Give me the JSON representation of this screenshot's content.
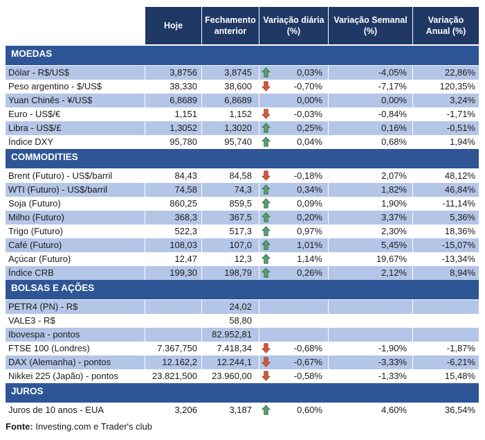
{
  "header": {
    "columns": [
      "Hoje",
      "Fechamento anterior",
      "Variação diária (%)",
      "Variação Semanal (%)",
      "Variação Anual (%)"
    ]
  },
  "chart_data": {
    "type": "table",
    "columns": [
      "",
      "Hoje",
      "Fechamento anterior",
      "Variação diária (%)",
      "Variação Semanal (%)",
      "Variação Anual (%)"
    ],
    "sections": [
      {
        "title": "MOEDAS",
        "rows": [
          {
            "label": "Dólar - R$/US$",
            "hoje": "3,8756",
            "fechamento": "3,8745",
            "arrow": "up",
            "diaria": "0,03%",
            "semanal": "-4,05%",
            "anual": "22,86%"
          },
          {
            "label": "Peso argentino - $/US$",
            "hoje": "38,330",
            "fechamento": "38,600",
            "arrow": "down",
            "diaria": "-0,70%",
            "semanal": "-7,17%",
            "anual": "120,35%"
          },
          {
            "label": "Yuan Chinês - ¥/US$",
            "hoje": "6,8689",
            "fechamento": "6,8689",
            "arrow": "none",
            "diaria": "0,00%",
            "semanal": "0,00%",
            "anual": "3,24%"
          },
          {
            "label": "Euro - US$/€",
            "hoje": "1,151",
            "fechamento": "1,152",
            "arrow": "down",
            "diaria": "-0,03%",
            "semanal": "-0,84%",
            "anual": "-1,71%"
          },
          {
            "label": "Libra - US$/£",
            "hoje": "1,3052",
            "fechamento": "1,3020",
            "arrow": "up",
            "diaria": "0,25%",
            "semanal": "0,16%",
            "anual": "-0,51%"
          },
          {
            "label": "Índice DXY",
            "hoje": "95,780",
            "fechamento": "95,740",
            "arrow": "up",
            "diaria": "0,04%",
            "semanal": "0,68%",
            "anual": "1,94%"
          }
        ]
      },
      {
        "title": "COMMODITIES",
        "rows": [
          {
            "label": "Brent (Futuro) - US$/barril",
            "hoje": "84,43",
            "fechamento": "84,58",
            "arrow": "down",
            "diaria": "-0,18%",
            "semanal": "2,07%",
            "anual": "48,12%"
          },
          {
            "label": "WTI (Futuro) - US$/barril",
            "hoje": "74,58",
            "fechamento": "74,3",
            "arrow": "up",
            "diaria": "0,34%",
            "semanal": "1,82%",
            "anual": "46,84%"
          },
          {
            "label": "Soja (Futuro)",
            "hoje": "860,25",
            "fechamento": "859,5",
            "arrow": "up",
            "diaria": "0,09%",
            "semanal": "1,90%",
            "anual": "-11,14%"
          },
          {
            "label": "Milho (Futuro)",
            "hoje": "368,3",
            "fechamento": "367,5",
            "arrow": "up",
            "diaria": "0,20%",
            "semanal": "3,37%",
            "anual": "5,36%"
          },
          {
            "label": "Trigo (Futuro)",
            "hoje": "522,3",
            "fechamento": "517,3",
            "arrow": "up",
            "diaria": "0,97%",
            "semanal": "2,30%",
            "anual": "18,36%"
          },
          {
            "label": "Café (Futuro)",
            "hoje": "108,03",
            "fechamento": "107,0",
            "arrow": "up",
            "diaria": "1,01%",
            "semanal": "5,45%",
            "anual": "-15,07%"
          },
          {
            "label": "Açúcar (Futuro)",
            "hoje": "12,47",
            "fechamento": "12,3",
            "arrow": "up",
            "diaria": "1,14%",
            "semanal": "19,67%",
            "anual": "-13,34%"
          },
          {
            "label": "Índice CRB",
            "hoje": "199,30",
            "fechamento": "198,79",
            "arrow": "up",
            "diaria": "0,26%",
            "semanal": "2,12%",
            "anual": "8,94%"
          }
        ]
      },
      {
        "title": "BOLSAS E AÇÕES",
        "rows": [
          {
            "label": "PETR4 (PN) - R$",
            "hoje": "",
            "fechamento": "24,02",
            "arrow": "none",
            "diaria": "",
            "semanal": "",
            "anual": ""
          },
          {
            "label": "VALE3 - R$",
            "hoje": "",
            "fechamento": "58,80",
            "arrow": "none",
            "diaria": "",
            "semanal": "",
            "anual": ""
          },
          {
            "label": "Ibovespa - pontos",
            "hoje": "",
            "fechamento": "82.952,81",
            "arrow": "none",
            "diaria": "",
            "semanal": "",
            "anual": ""
          },
          {
            "label": "FTSE 100 (Londres)",
            "hoje": "7.367,750",
            "fechamento": "7.418,34",
            "arrow": "down",
            "diaria": "-0,68%",
            "semanal": "-1,90%",
            "anual": "-1,87%"
          },
          {
            "label": "DAX (Alemanha) - pontos",
            "hoje": "12.162,2",
            "fechamento": "12.244,1",
            "arrow": "down",
            "diaria": "-0,67%",
            "semanal": "-3,33%",
            "anual": "-6,21%"
          },
          {
            "label": "Nikkei 225 (Japão) - pontos",
            "hoje": "23.821,500",
            "fechamento": "23.960,00",
            "arrow": "down",
            "diaria": "-0,58%",
            "semanal": "-1,33%",
            "anual": "15,48%"
          }
        ]
      },
      {
        "title": "JUROS",
        "rows": [
          {
            "label": "Juros de 10 anos - EUA",
            "hoje": "3,206",
            "fechamento": "3,187",
            "arrow": "up",
            "diaria": "0,60%",
            "semanal": "4,60%",
            "anual": "36,54%"
          }
        ]
      }
    ]
  },
  "footer": {
    "label": "Fonte:",
    "text": " Investing.com e Trader's club"
  },
  "colors": {
    "header-navy": "#1F3864",
    "section-blue": "#2E5596",
    "row-blue": "#B4C6E7",
    "text": "#1a1a1a",
    "arrow-up": "#57A06B",
    "arrow-up-border": "#2E6B45",
    "arrow-down": "#D4593C",
    "arrow-down-border": "#9C3B1F"
  }
}
